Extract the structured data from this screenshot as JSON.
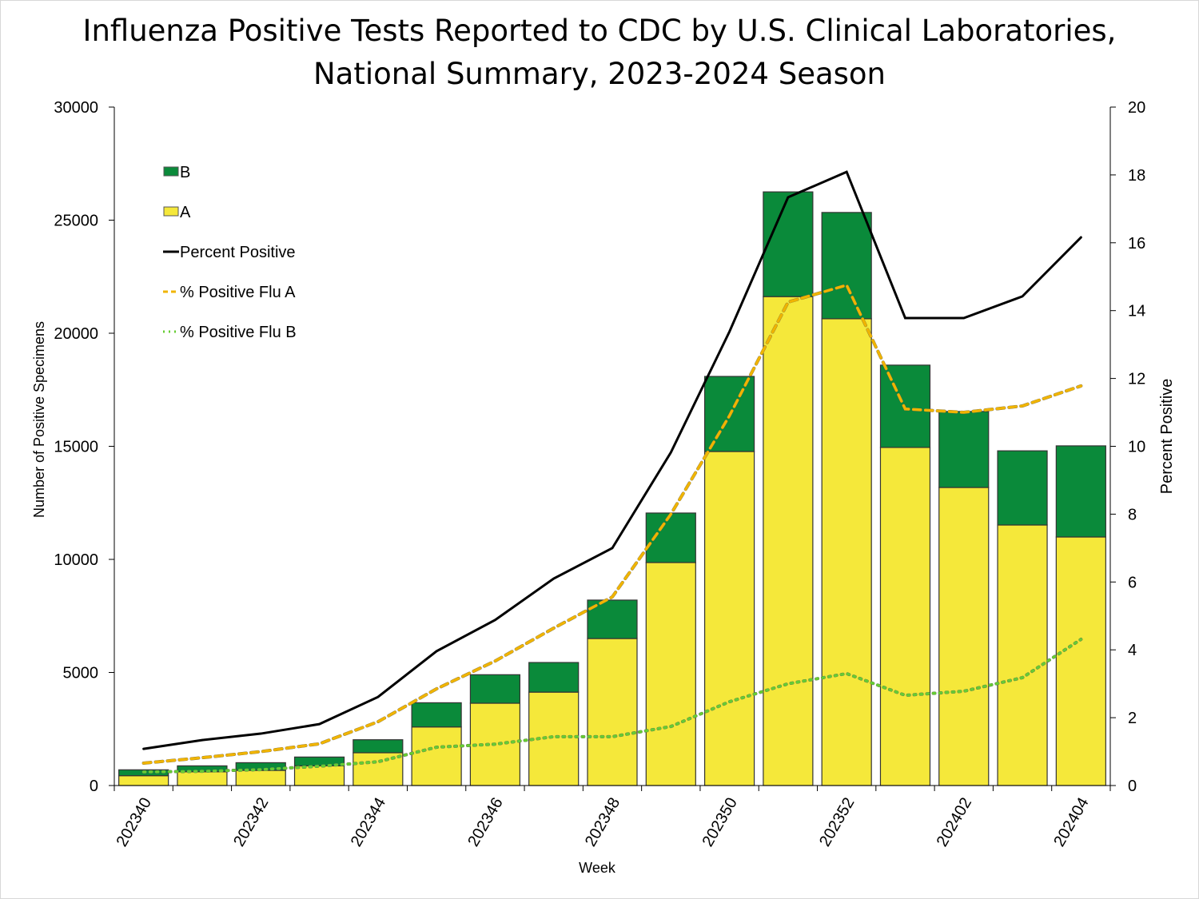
{
  "chart_data": {
    "type": "bar",
    "title_line1": "Influenza Positive Tests Reported to CDC by U.S. Clinical Laboratories,",
    "title_line2": "National Summary, 2023-2024 Season",
    "xlabel": "Week",
    "ylabel": "Number of Positive Specimens",
    "ylabel_right": "Percent Positive",
    "ylim": [
      0,
      30000
    ],
    "ylim_right": [
      0,
      20
    ],
    "yticks": [
      0,
      5000,
      10000,
      15000,
      20000,
      25000,
      30000
    ],
    "yticks_right": [
      0,
      2,
      4,
      6,
      8,
      10,
      12,
      14,
      16,
      18,
      20
    ],
    "grid": false,
    "legend_placement": "top-left",
    "categories": [
      "202340",
      "202341",
      "202342",
      "202343",
      "202344",
      "202345",
      "202346",
      "202347",
      "202348",
      "202349",
      "202350",
      "202351",
      "202352",
      "202401",
      "202402",
      "202403",
      "202404"
    ],
    "xtick_labels_shown": [
      "202340",
      "202342",
      "202344",
      "202346",
      "202348",
      "202350",
      "202352",
      "202402",
      "202404"
    ],
    "stacked_bars": [
      {
        "name": "B",
        "color": "#0a8a3a",
        "values": [
          260,
          260,
          340,
          390,
          575,
          1070,
          1260,
          1310,
          1700,
          2190,
          3320,
          4630,
          4700,
          3640,
          3360,
          3280,
          4030
        ]
      },
      {
        "name": "A",
        "color": "#f5e83a",
        "values": [
          435,
          610,
          670,
          870,
          1450,
          2590,
          3640,
          4130,
          6500,
          9860,
          14770,
          21620,
          20640,
          14950,
          13180,
          11520,
          10990
        ]
      }
    ],
    "lines": [
      {
        "name": "Percent Positive",
        "axis": "right",
        "color": "#000000",
        "style": "solid",
        "values": [
          1.08,
          1.34,
          1.53,
          1.81,
          2.61,
          3.96,
          4.88,
          6.1,
          7.0,
          9.82,
          13.38,
          17.34,
          18.09,
          13.78,
          13.78,
          14.42,
          16.16
        ]
      },
      {
        "name": "% Positive Flu A",
        "axis": "right",
        "color": "#f0b400",
        "style": "dashed",
        "values": [
          0.66,
          0.82,
          1.0,
          1.23,
          1.88,
          2.85,
          3.67,
          4.64,
          5.56,
          8.0,
          10.9,
          14.25,
          14.75,
          11.1,
          11.0,
          11.19,
          11.78
        ]
      },
      {
        "name": "% Positive Flu B",
        "axis": "right",
        "color": "#66cc33",
        "style": "dotted",
        "values": [
          0.4,
          0.42,
          0.47,
          0.57,
          0.7,
          1.13,
          1.22,
          1.44,
          1.44,
          1.74,
          2.47,
          3.0,
          3.3,
          2.66,
          2.78,
          3.18,
          4.31
        ]
      }
    ],
    "legend": [
      "B",
      "A",
      "Percent Positive",
      "% Positive Flu A",
      "% Positive Flu B"
    ]
  }
}
